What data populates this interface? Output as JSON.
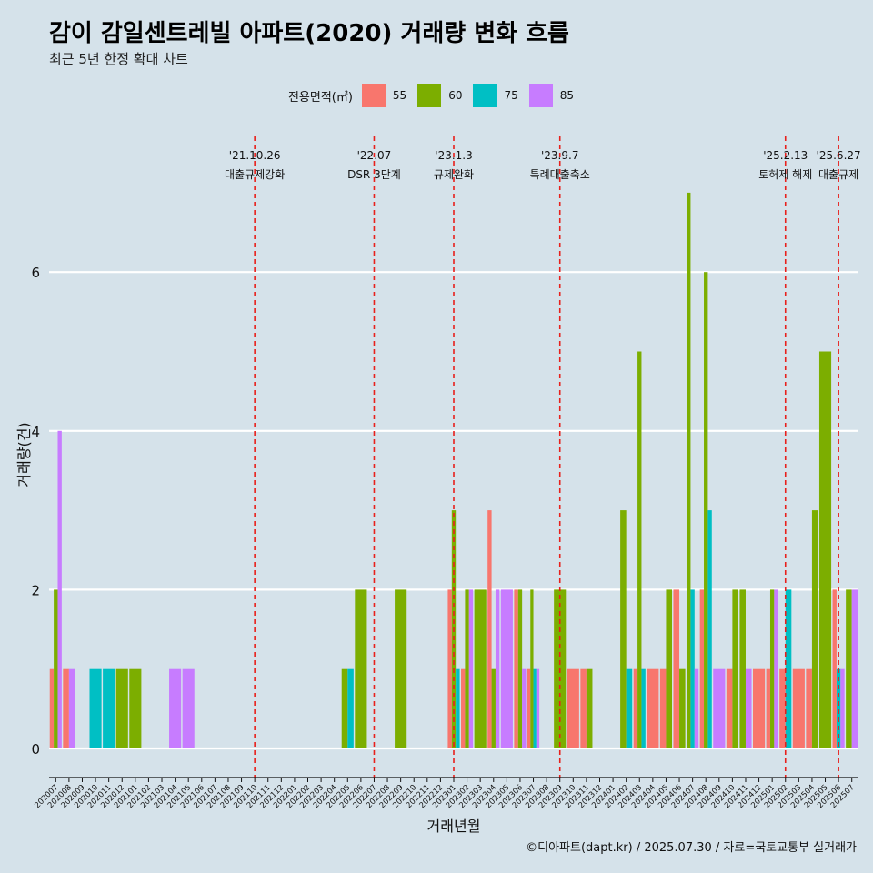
{
  "title": "감이 감일센트레빌 아파트(2020) 거래량 변화 흐름",
  "subtitle": "최근 5년 한정 확대 차트",
  "caption": "©디아파트(dapt.kr) / 2025.07.30 / 자료=국토교통부 실거래가",
  "legend": {
    "title": "전용면적(㎡)",
    "items": [
      {
        "label": "55",
        "color": "#f8766d"
      },
      {
        "label": "60",
        "color": "#7cae00"
      },
      {
        "label": "75",
        "color": "#00bfc4"
      },
      {
        "label": "85",
        "color": "#c77cff"
      }
    ]
  },
  "chart_data": {
    "type": "bar",
    "xlabel": "거래년월",
    "ylabel": "거래량(건)",
    "ylim": [
      0,
      7
    ],
    "yticks": [
      0,
      2,
      4,
      6
    ],
    "categories": [
      "202007",
      "202008",
      "202009",
      "202010",
      "202011",
      "202012",
      "202101",
      "202102",
      "202103",
      "202104",
      "202105",
      "202106",
      "202107",
      "202108",
      "202109",
      "202110",
      "202111",
      "202112",
      "202201",
      "202202",
      "202203",
      "202204",
      "202205",
      "202206",
      "202207",
      "202208",
      "202209",
      "202210",
      "202211",
      "202212",
      "202301",
      "202302",
      "202303",
      "202304",
      "202305",
      "202306",
      "202307",
      "202308",
      "202309",
      "202310",
      "202311",
      "202312",
      "202401",
      "202402",
      "202403",
      "202404",
      "202405",
      "202406",
      "202407",
      "202408",
      "202409",
      "202410",
      "202411",
      "202412",
      "202501",
      "202502",
      "202503",
      "202504",
      "202505",
      "202506",
      "202507"
    ],
    "series": [
      {
        "name": "55",
        "color": "#f8766d",
        "values": [
          1,
          1,
          0,
          0,
          0,
          0,
          0,
          0,
          0,
          0,
          0,
          0,
          0,
          0,
          0,
          0,
          0,
          0,
          0,
          0,
          0,
          0,
          0,
          0,
          0,
          0,
          0,
          0,
          0,
          0,
          2,
          1,
          0,
          3,
          0,
          2,
          1,
          0,
          0,
          1,
          1,
          0,
          0,
          0,
          1,
          1,
          1,
          2,
          0,
          2,
          0,
          1,
          0,
          1,
          1,
          1,
          1,
          1,
          0,
          2,
          0
        ]
      },
      {
        "name": "60",
        "color": "#7cae00",
        "values": [
          2,
          0,
          0,
          0,
          0,
          1,
          1,
          0,
          0,
          0,
          0,
          0,
          0,
          0,
          0,
          0,
          0,
          0,
          0,
          0,
          0,
          0,
          1,
          2,
          0,
          0,
          2,
          0,
          0,
          0,
          3,
          2,
          2,
          1,
          0,
          2,
          2,
          0,
          2,
          0,
          1,
          0,
          0,
          3,
          5,
          0,
          2,
          1,
          7,
          6,
          0,
          2,
          2,
          0,
          2,
          0,
          0,
          3,
          5,
          0,
          2
        ]
      },
      {
        "name": "75",
        "color": "#00bfc4",
        "values": [
          0,
          0,
          0,
          1,
          1,
          0,
          0,
          0,
          0,
          0,
          0,
          0,
          0,
          0,
          0,
          0,
          0,
          0,
          0,
          0,
          0,
          0,
          1,
          0,
          0,
          0,
          0,
          0,
          0,
          0,
          1,
          0,
          0,
          0,
          0,
          0,
          1,
          0,
          0,
          0,
          0,
          0,
          0,
          1,
          1,
          0,
          0,
          0,
          2,
          3,
          0,
          0,
          0,
          0,
          0,
          2,
          0,
          0,
          0,
          1,
          0
        ]
      },
      {
        "name": "85",
        "color": "#c77cff",
        "values": [
          4,
          1,
          0,
          0,
          0,
          0,
          0,
          0,
          0,
          1,
          1,
          0,
          0,
          0,
          0,
          0,
          0,
          0,
          0,
          0,
          0,
          0,
          0,
          0,
          0,
          0,
          0,
          0,
          0,
          0,
          0,
          2,
          0,
          2,
          2,
          1,
          1,
          0,
          0,
          0,
          0,
          0,
          0,
          0,
          0,
          0,
          0,
          0,
          1,
          0,
          1,
          0,
          1,
          0,
          2,
          0,
          0,
          0,
          0,
          1,
          2
        ]
      }
    ],
    "annotations": [
      {
        "x": "202110",
        "date": "'21.10.26",
        "label": "대출규제강화"
      },
      {
        "x": "202207",
        "date": "'22.07",
        "label": "DSR 3단계"
      },
      {
        "x": "202301",
        "date": "'23.1.3",
        "label": "규제완화"
      },
      {
        "x": "202309",
        "date": "'23.9.7",
        "label": "특례대출축소"
      },
      {
        "x": "202502",
        "date": "'25.2.13",
        "label": "토허제 해제"
      },
      {
        "x": "202506",
        "date": "'25.6.27",
        "label": "대출규제"
      }
    ]
  }
}
